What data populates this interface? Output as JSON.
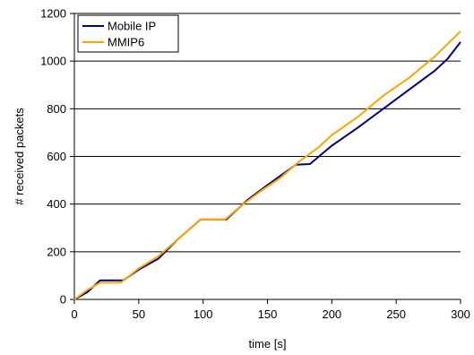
{
  "chart_data": {
    "type": "line",
    "title": "",
    "xlabel": "time [s]",
    "ylabel": "# received packets",
    "xlim": [
      0,
      300
    ],
    "ylim": [
      0,
      1200
    ],
    "x_ticks": [
      0,
      50,
      100,
      150,
      200,
      250,
      300
    ],
    "y_ticks": [
      0,
      200,
      400,
      600,
      800,
      1000,
      1200
    ],
    "grid": "horizontal",
    "legend_position": "top-left",
    "series": [
      {
        "name": "Mobile IP",
        "color": "#000080",
        "points": [
          [
            0,
            0
          ],
          [
            10,
            30
          ],
          [
            20,
            80
          ],
          [
            38,
            80
          ],
          [
            50,
            125
          ],
          [
            65,
            170
          ],
          [
            80,
            250
          ],
          [
            98,
            335
          ],
          [
            118,
            335
          ],
          [
            135,
            420
          ],
          [
            150,
            480
          ],
          [
            163,
            530
          ],
          [
            172,
            565
          ],
          [
            183,
            568
          ],
          [
            190,
            600
          ],
          [
            200,
            645
          ],
          [
            220,
            720
          ],
          [
            240,
            800
          ],
          [
            260,
            880
          ],
          [
            280,
            960
          ],
          [
            290,
            1010
          ],
          [
            300,
            1080
          ]
        ]
      },
      {
        "name": "MMIP6",
        "color": "#FFA500",
        "points": [
          [
            0,
            0
          ],
          [
            10,
            40
          ],
          [
            20,
            70
          ],
          [
            36,
            70
          ],
          [
            50,
            130
          ],
          [
            65,
            180
          ],
          [
            80,
            250
          ],
          [
            98,
            335
          ],
          [
            117,
            335
          ],
          [
            130,
            395
          ],
          [
            145,
            455
          ],
          [
            160,
            510
          ],
          [
            175,
            580
          ],
          [
            190,
            640
          ],
          [
            200,
            690
          ],
          [
            220,
            765
          ],
          [
            240,
            855
          ],
          [
            260,
            930
          ],
          [
            280,
            1020
          ],
          [
            300,
            1125
          ]
        ]
      }
    ]
  }
}
